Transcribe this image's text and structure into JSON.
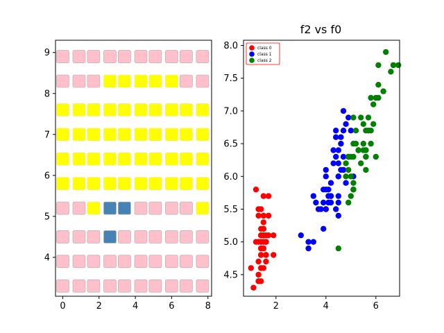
{
  "chart_data": [
    {
      "type": "heatmap",
      "title": "",
      "xlabel": "",
      "ylabel": "",
      "xlim": [
        -0.4,
        8.2
      ],
      "ylim": [
        3.05,
        9.3
      ],
      "x_ticks": [
        0,
        2,
        4,
        6,
        8
      ],
      "y_ticks": [
        4,
        5,
        6,
        7,
        8,
        9
      ],
      "columns": [
        0,
        0.9,
        1.7,
        2.6,
        3.4,
        4.3,
        5.1,
        6.0,
        6.8,
        7.7
      ],
      "rows": [
        3.3,
        3.9,
        4.5,
        5.2,
        5.8,
        6.4,
        7.0,
        7.6,
        8.3,
        8.9
      ],
      "colors": {
        "pink": "#ffc0cb",
        "yellow": "#ffff00",
        "blue": "#4682b4"
      },
      "cells": [
        [
          "pink",
          "pink",
          "pink",
          "pink",
          "pink",
          "pink",
          "pink",
          "pink",
          "pink",
          "pink"
        ],
        [
          "pink",
          "pink",
          "pink",
          "pink",
          "pink",
          "pink",
          "pink",
          "pink",
          "pink",
          "pink"
        ],
        [
          "pink",
          "pink",
          "pink",
          "blue",
          "pink",
          "pink",
          "pink",
          "pink",
          "pink",
          "pink"
        ],
        [
          "pink",
          "pink",
          "yellow",
          "blue",
          "blue",
          "pink",
          "pink",
          "pink",
          "pink",
          "yellow"
        ],
        [
          "yellow",
          "yellow",
          "yellow",
          "yellow",
          "yellow",
          "yellow",
          "yellow",
          "yellow",
          "yellow",
          "yellow"
        ],
        [
          "yellow",
          "yellow",
          "yellow",
          "yellow",
          "yellow",
          "yellow",
          "yellow",
          "yellow",
          "yellow",
          "yellow"
        ],
        [
          "yellow",
          "yellow",
          "yellow",
          "yellow",
          "yellow",
          "yellow",
          "yellow",
          "yellow",
          "yellow",
          "yellow"
        ],
        [
          "yellow",
          "yellow",
          "yellow",
          "yellow",
          "yellow",
          "yellow",
          "yellow",
          "yellow",
          "yellow",
          "yellow"
        ],
        [
          "pink",
          "pink",
          "pink",
          "yellow",
          "yellow",
          "yellow",
          "yellow",
          "yellow",
          "pink",
          "pink"
        ],
        [
          "pink",
          "pink",
          "pink",
          "pink",
          "pink",
          "pink",
          "pink",
          "pink",
          "pink",
          "pink"
        ]
      ]
    },
    {
      "type": "scatter",
      "title": "f2 vs f0",
      "xlabel": "",
      "ylabel": "",
      "xlim": [
        0.7,
        6.95
      ],
      "ylim": [
        4.17,
        8.08
      ],
      "x_ticks": [
        2,
        4,
        6
      ],
      "y_ticks": [
        4.5,
        5.0,
        5.5,
        6.0,
        6.5,
        7.0,
        7.5,
        8.0
      ],
      "legend_position": "top-left",
      "series": [
        {
          "name": "class 0",
          "color": "#ff0000",
          "points": [
            [
              1.4,
              5.1
            ],
            [
              1.4,
              4.9
            ],
            [
              1.3,
              4.7
            ],
            [
              1.5,
              4.6
            ],
            [
              1.4,
              5.0
            ],
            [
              1.7,
              5.4
            ],
            [
              1.4,
              4.6
            ],
            [
              1.5,
              5.0
            ],
            [
              1.4,
              4.4
            ],
            [
              1.5,
              4.9
            ],
            [
              1.5,
              5.4
            ],
            [
              1.6,
              4.8
            ],
            [
              1.4,
              4.8
            ],
            [
              1.1,
              4.3
            ],
            [
              1.2,
              5.8
            ],
            [
              1.5,
              5.7
            ],
            [
              1.3,
              5.4
            ],
            [
              1.4,
              5.1
            ],
            [
              1.7,
              5.7
            ],
            [
              1.5,
              5.1
            ],
            [
              1.7,
              5.4
            ],
            [
              1.5,
              5.1
            ],
            [
              1.0,
              4.6
            ],
            [
              1.7,
              5.1
            ],
            [
              1.9,
              4.8
            ],
            [
              1.6,
              5.0
            ],
            [
              1.6,
              5.0
            ],
            [
              1.5,
              5.2
            ],
            [
              1.4,
              5.2
            ],
            [
              1.6,
              4.7
            ],
            [
              1.6,
              4.8
            ],
            [
              1.5,
              5.4
            ],
            [
              1.5,
              5.2
            ],
            [
              1.4,
              5.5
            ],
            [
              1.5,
              4.9
            ],
            [
              1.2,
              5.0
            ],
            [
              1.3,
              5.5
            ],
            [
              1.4,
              4.9
            ],
            [
              1.3,
              4.4
            ],
            [
              1.5,
              5.1
            ],
            [
              1.3,
              5.0
            ],
            [
              1.3,
              4.5
            ],
            [
              1.3,
              4.4
            ],
            [
              1.6,
              5.0
            ],
            [
              1.9,
              5.1
            ],
            [
              1.4,
              4.8
            ],
            [
              1.6,
              5.1
            ],
            [
              1.4,
              4.6
            ],
            [
              1.5,
              5.3
            ],
            [
              1.4,
              5.0
            ]
          ]
        },
        {
          "name": "class 1",
          "color": "#0000ff",
          "points": [
            [
              4.7,
              7.0
            ],
            [
              4.5,
              6.4
            ],
            [
              4.9,
              6.9
            ],
            [
              4.0,
              5.5
            ],
            [
              4.6,
              6.5
            ],
            [
              4.5,
              5.7
            ],
            [
              4.7,
              6.3
            ],
            [
              3.3,
              4.9
            ],
            [
              4.6,
              6.6
            ],
            [
              3.9,
              5.2
            ],
            [
              3.5,
              5.0
            ],
            [
              4.2,
              5.9
            ],
            [
              4.0,
              6.0
            ],
            [
              4.7,
              6.1
            ],
            [
              3.6,
              5.6
            ],
            [
              4.4,
              6.7
            ],
            [
              4.5,
              5.6
            ],
            [
              4.1,
              5.8
            ],
            [
              4.5,
              6.2
            ],
            [
              3.9,
              5.6
            ],
            [
              4.8,
              5.9
            ],
            [
              4.0,
              6.1
            ],
            [
              4.9,
              6.3
            ],
            [
              4.7,
              6.1
            ],
            [
              4.3,
              6.4
            ],
            [
              4.4,
              6.6
            ],
            [
              4.8,
              6.8
            ],
            [
              5.0,
              6.7
            ],
            [
              4.5,
              6.0
            ],
            [
              3.5,
              5.7
            ],
            [
              3.8,
              5.5
            ],
            [
              3.7,
              5.5
            ],
            [
              3.9,
              5.8
            ],
            [
              5.1,
              6.0
            ],
            [
              4.5,
              5.4
            ],
            [
              4.5,
              6.0
            ],
            [
              4.7,
              6.7
            ],
            [
              4.4,
              6.3
            ],
            [
              4.1,
              5.6
            ],
            [
              4.0,
              5.5
            ],
            [
              4.4,
              5.5
            ],
            [
              4.6,
              6.1
            ],
            [
              4.0,
              5.8
            ],
            [
              3.3,
              5.0
            ],
            [
              4.2,
              5.6
            ],
            [
              4.2,
              5.7
            ],
            [
              4.2,
              5.7
            ],
            [
              4.3,
              6.2
            ],
            [
              3.0,
              5.1
            ],
            [
              4.1,
              5.7
            ]
          ]
        },
        {
          "name": "class 2",
          "color": "#008000",
          "points": [
            [
              6.0,
              6.3
            ],
            [
              5.1,
              5.8
            ],
            [
              5.9,
              7.1
            ],
            [
              5.6,
              6.3
            ],
            [
              5.8,
              6.5
            ],
            [
              6.6,
              7.6
            ],
            [
              4.5,
              4.9
            ],
            [
              6.3,
              7.3
            ],
            [
              5.8,
              6.7
            ],
            [
              6.1,
              7.2
            ],
            [
              5.1,
              6.5
            ],
            [
              5.3,
              6.4
            ],
            [
              5.5,
              6.8
            ],
            [
              5.0,
              5.7
            ],
            [
              5.1,
              5.8
            ],
            [
              5.3,
              6.4
            ],
            [
              5.5,
              6.5
            ],
            [
              6.7,
              7.7
            ],
            [
              6.9,
              7.7
            ],
            [
              5.0,
              6.0
            ],
            [
              5.7,
              6.9
            ],
            [
              4.9,
              5.6
            ],
            [
              6.7,
              7.7
            ],
            [
              4.9,
              6.3
            ],
            [
              5.7,
              6.7
            ],
            [
              6.0,
              7.2
            ],
            [
              4.8,
              6.2
            ],
            [
              4.9,
              6.1
            ],
            [
              5.6,
              6.4
            ],
            [
              5.8,
              7.2
            ],
            [
              6.1,
              7.4
            ],
            [
              6.4,
              7.9
            ],
            [
              5.6,
              6.4
            ],
            [
              5.1,
              6.3
            ],
            [
              5.6,
              6.1
            ],
            [
              6.1,
              7.7
            ],
            [
              5.6,
              6.3
            ],
            [
              5.5,
              6.4
            ],
            [
              4.8,
              6.0
            ],
            [
              5.4,
              6.9
            ],
            [
              5.6,
              6.7
            ],
            [
              5.1,
              6.9
            ],
            [
              5.1,
              5.8
            ],
            [
              5.9,
              6.8
            ],
            [
              5.7,
              6.7
            ],
            [
              5.2,
              6.7
            ],
            [
              5.0,
              6.3
            ],
            [
              5.2,
              6.5
            ],
            [
              5.4,
              6.2
            ],
            [
              5.1,
              5.9
            ]
          ]
        }
      ]
    }
  ]
}
